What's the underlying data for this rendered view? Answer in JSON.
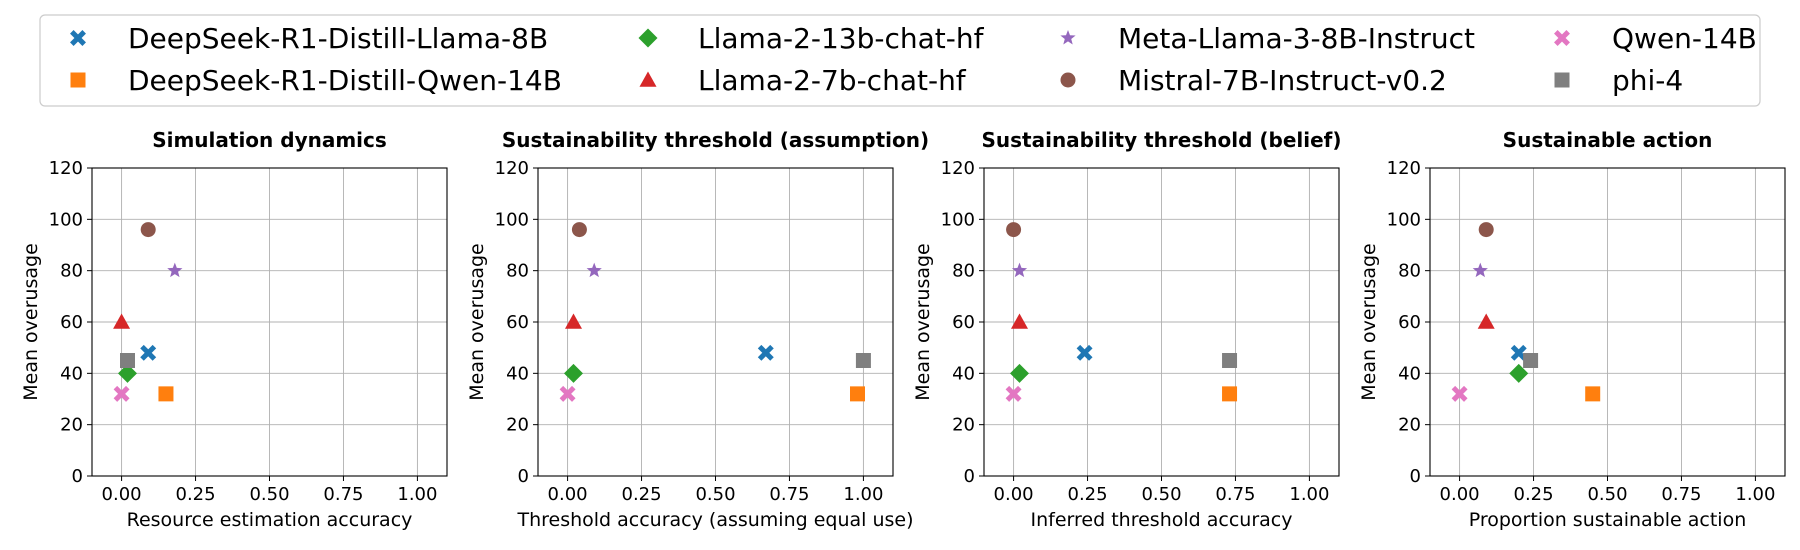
{
  "legend": [
    {
      "label": "DeepSeek-R1-Distill-Llama-8B",
      "marker": "x-icon",
      "color": "#1f77b4"
    },
    {
      "label": "DeepSeek-R1-Distill-Qwen-14B",
      "marker": "square-icon",
      "color": "#ff7f0e"
    },
    {
      "label": "Llama-2-13b-chat-hf",
      "marker": "diamond-icon",
      "color": "#2ca02c"
    },
    {
      "label": "Llama-2-7b-chat-hf",
      "marker": "triangle-icon",
      "color": "#d62728"
    },
    {
      "label": "Meta-Llama-3-8B-Instruct",
      "marker": "star-icon",
      "color": "#9467bd"
    },
    {
      "label": "Mistral-7B-Instruct-v0.2",
      "marker": "circle-icon",
      "color": "#8c564b"
    },
    {
      "label": "Qwen-14B",
      "marker": "x-icon",
      "color": "#e377c2"
    },
    {
      "label": "phi-4",
      "marker": "square-icon",
      "color": "#7f7f7f"
    }
  ],
  "chart_data": [
    {
      "type": "scatter",
      "title": "Simulation dynamics",
      "xlabel": "Resource estimation accuracy",
      "ylabel": "Mean overusage",
      "xlim": [
        -0.1,
        1.1
      ],
      "ylim": [
        0,
        120
      ],
      "xticks": [
        "0.00",
        "0.25",
        "0.50",
        "0.75",
        "1.00"
      ],
      "yticks": [
        "0",
        "20",
        "40",
        "60",
        "80",
        "100",
        "120"
      ],
      "grid": true,
      "points": [
        {
          "series": "DeepSeek-R1-Distill-Llama-8B",
          "x": 0.09,
          "y": 48
        },
        {
          "series": "DeepSeek-R1-Distill-Qwen-14B",
          "x": 0.15,
          "y": 32
        },
        {
          "series": "Llama-2-13b-chat-hf",
          "x": 0.02,
          "y": 40
        },
        {
          "series": "Llama-2-7b-chat-hf",
          "x": 0.0,
          "y": 60
        },
        {
          "series": "Meta-Llama-3-8B-Instruct",
          "x": 0.18,
          "y": 80
        },
        {
          "series": "Mistral-7B-Instruct-v0.2",
          "x": 0.09,
          "y": 96
        },
        {
          "series": "Qwen-14B",
          "x": 0.0,
          "y": 32
        },
        {
          "series": "phi-4",
          "x": 0.02,
          "y": 45
        }
      ]
    },
    {
      "type": "scatter",
      "title": "Sustainability threshold (assumption)",
      "xlabel": "Threshold accuracy (assuming equal use)",
      "ylabel": "Mean overusage",
      "xlim": [
        -0.1,
        1.1
      ],
      "ylim": [
        0,
        120
      ],
      "xticks": [
        "0.00",
        "0.25",
        "0.50",
        "0.75",
        "1.00"
      ],
      "yticks": [
        "0",
        "20",
        "40",
        "60",
        "80",
        "100",
        "120"
      ],
      "grid": true,
      "points": [
        {
          "series": "DeepSeek-R1-Distill-Llama-8B",
          "x": 0.67,
          "y": 48
        },
        {
          "series": "DeepSeek-R1-Distill-Qwen-14B",
          "x": 0.98,
          "y": 32
        },
        {
          "series": "Llama-2-13b-chat-hf",
          "x": 0.02,
          "y": 40
        },
        {
          "series": "Llama-2-7b-chat-hf",
          "x": 0.02,
          "y": 60
        },
        {
          "series": "Meta-Llama-3-8B-Instruct",
          "x": 0.09,
          "y": 80
        },
        {
          "series": "Mistral-7B-Instruct-v0.2",
          "x": 0.04,
          "y": 96
        },
        {
          "series": "Qwen-14B",
          "x": 0.0,
          "y": 32
        },
        {
          "series": "phi-4",
          "x": 1.0,
          "y": 45
        }
      ]
    },
    {
      "type": "scatter",
      "title": "Sustainability threshold (belief)",
      "xlabel": "Inferred threshold accuracy",
      "ylabel": "Mean overusage",
      "xlim": [
        -0.1,
        1.1
      ],
      "ylim": [
        0,
        120
      ],
      "xticks": [
        "0.00",
        "0.25",
        "0.50",
        "0.75",
        "1.00"
      ],
      "yticks": [
        "0",
        "20",
        "40",
        "60",
        "80",
        "100",
        "120"
      ],
      "grid": true,
      "points": [
        {
          "series": "DeepSeek-R1-Distill-Llama-8B",
          "x": 0.24,
          "y": 48
        },
        {
          "series": "DeepSeek-R1-Distill-Qwen-14B",
          "x": 0.73,
          "y": 32
        },
        {
          "series": "Llama-2-13b-chat-hf",
          "x": 0.02,
          "y": 40
        },
        {
          "series": "Llama-2-7b-chat-hf",
          "x": 0.02,
          "y": 60
        },
        {
          "series": "Meta-Llama-3-8B-Instruct",
          "x": 0.02,
          "y": 80
        },
        {
          "series": "Mistral-7B-Instruct-v0.2",
          "x": 0.0,
          "y": 96
        },
        {
          "series": "Qwen-14B",
          "x": 0.0,
          "y": 32
        },
        {
          "series": "phi-4",
          "x": 0.73,
          "y": 45
        }
      ]
    },
    {
      "type": "scatter",
      "title": "Sustainable action",
      "xlabel": "Proportion sustainable action",
      "ylabel": "Mean overusage",
      "xlim": [
        -0.1,
        1.1
      ],
      "ylim": [
        0,
        120
      ],
      "xticks": [
        "0.00",
        "0.25",
        "0.50",
        "0.75",
        "1.00"
      ],
      "yticks": [
        "0",
        "20",
        "40",
        "60",
        "80",
        "100",
        "120"
      ],
      "grid": true,
      "points": [
        {
          "series": "DeepSeek-R1-Distill-Llama-8B",
          "x": 0.2,
          "y": 48
        },
        {
          "series": "DeepSeek-R1-Distill-Qwen-14B",
          "x": 0.45,
          "y": 32
        },
        {
          "series": "Llama-2-13b-chat-hf",
          "x": 0.2,
          "y": 40
        },
        {
          "series": "Llama-2-7b-chat-hf",
          "x": 0.09,
          "y": 60
        },
        {
          "series": "Meta-Llama-3-8B-Instruct",
          "x": 0.07,
          "y": 80
        },
        {
          "series": "Mistral-7B-Instruct-v0.2",
          "x": 0.09,
          "y": 96
        },
        {
          "series": "Qwen-14B",
          "x": 0.0,
          "y": 32
        },
        {
          "series": "phi-4",
          "x": 0.24,
          "y": 45
        }
      ]
    }
  ]
}
